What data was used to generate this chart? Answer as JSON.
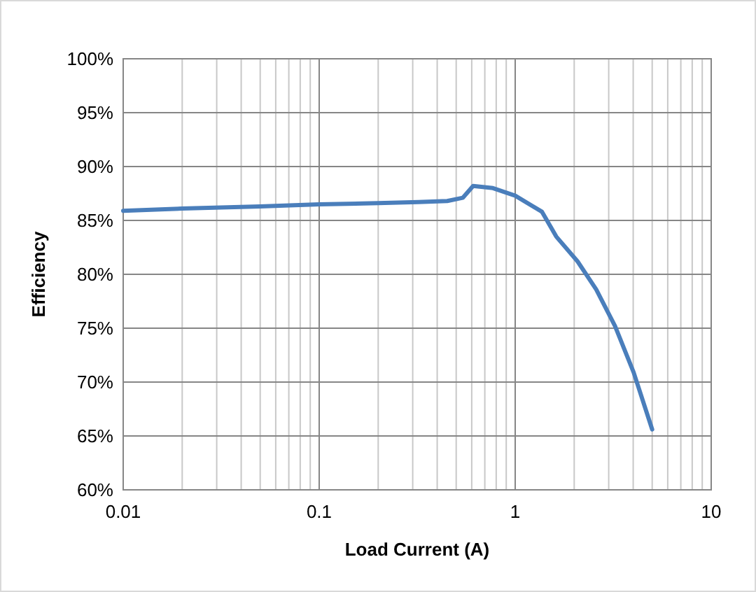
{
  "chart_data": {
    "type": "line",
    "xlabel": "Load Current (A)",
    "ylabel": "Efficiency",
    "log": "x",
    "grid": true,
    "marker": "none",
    "line_style": "solid",
    "xlim": [
      0.01,
      10
    ],
    "xticks": [
      0.01,
      0.1,
      1,
      10
    ],
    "ylim": [
      60,
      100
    ],
    "yticks": [
      {
        "value": 60,
        "label": "60%"
      },
      {
        "value": 65,
        "label": "65%"
      },
      {
        "value": 70,
        "label": "70%"
      },
      {
        "value": 75,
        "label": "75%"
      },
      {
        "value": 80,
        "label": "80%"
      },
      {
        "value": 85,
        "label": "85%"
      },
      {
        "value": 90,
        "label": "90%"
      },
      {
        "value": 95,
        "label": "95%"
      },
      {
        "value": 100,
        "label": "100%"
      }
    ],
    "series": [
      {
        "color": "#4a7ebb",
        "x": [
          0.01,
          0.02,
          0.05,
          0.1,
          0.2,
          0.32,
          0.45,
          0.54,
          0.61,
          0.77,
          1.0,
          1.37,
          1.62,
          2.08,
          2.59,
          3.23,
          4.02,
          5.0
        ],
        "values": [
          85.9,
          86.1,
          86.3,
          86.5,
          86.6,
          86.7,
          86.8,
          87.1,
          88.2,
          88.0,
          87.3,
          85.8,
          83.5,
          81.2,
          78.6,
          75.2,
          70.9,
          65.6
        ]
      }
    ]
  }
}
